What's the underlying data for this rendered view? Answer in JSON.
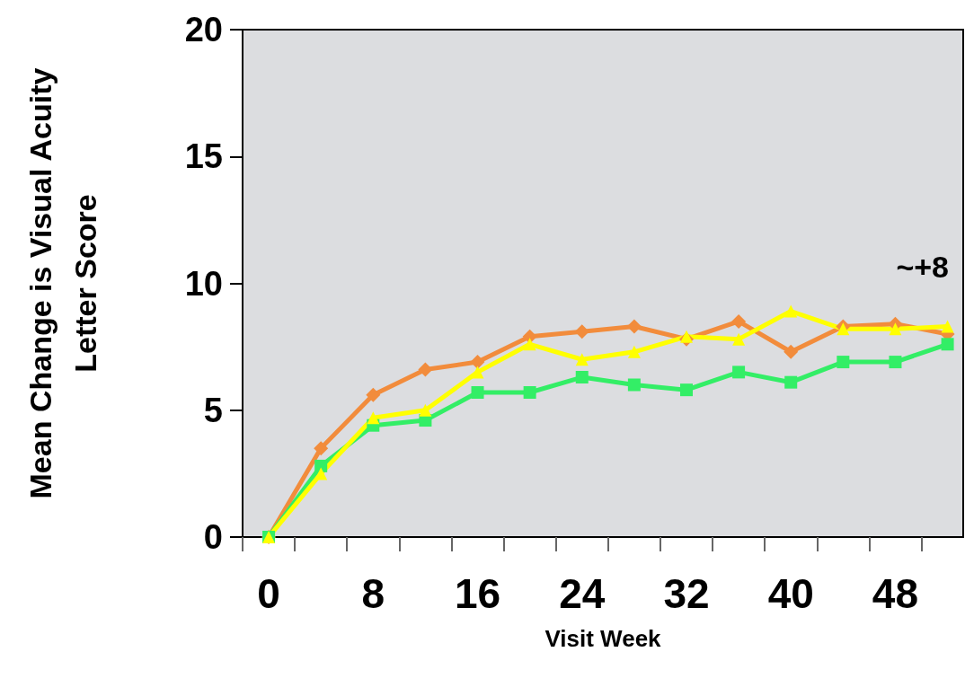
{
  "chart_data": {
    "type": "line",
    "xlabel": "Visit Week",
    "ylabel": "Mean Change is Visual Acuity\nLetter Score",
    "x": [
      0,
      4,
      8,
      12,
      16,
      20,
      24,
      28,
      32,
      36,
      40,
      44,
      48,
      52
    ],
    "series": [
      {
        "color": "#f28c3c",
        "marker": "diamond",
        "values": [
          0,
          3.5,
          5.6,
          6.6,
          6.9,
          7.9,
          8.1,
          8.3,
          7.8,
          8.5,
          7.3,
          8.3,
          8.4,
          8.0
        ]
      },
      {
        "color": "#33ee66",
        "marker": "square",
        "values": [
          0,
          2.8,
          4.4,
          4.6,
          5.7,
          5.7,
          6.3,
          6.0,
          5.8,
          6.5,
          6.1,
          6.9,
          6.9,
          7.6
        ]
      },
      {
        "color": "#ffff00",
        "marker": "triangle",
        "values": [
          0,
          2.5,
          4.7,
          5.0,
          6.5,
          7.6,
          7.0,
          7.3,
          7.9,
          7.8,
          8.9,
          8.2,
          8.2,
          8.3
        ]
      }
    ],
    "xlim": [
      -2,
      53.2
    ],
    "xticks": [
      {
        "value": -2,
        "label": null
      },
      0,
      {
        "value": 2,
        "label": null
      },
      {
        "value": 6,
        "label": null
      },
      8,
      {
        "value": 10,
        "label": null
      },
      {
        "value": 14,
        "label": null
      },
      16,
      {
        "value": 18,
        "label": null
      },
      {
        "value": 22,
        "label": null
      },
      24,
      {
        "value": 26,
        "label": null
      },
      {
        "value": 30,
        "label": null
      },
      32,
      {
        "value": 34,
        "label": null
      },
      {
        "value": 38,
        "label": null
      },
      40,
      {
        "value": 42,
        "label": null
      },
      {
        "value": 46,
        "label": null
      },
      48,
      {
        "value": 50,
        "label": null
      }
    ],
    "ylim": [
      0,
      20
    ],
    "yticks": [
      0,
      5,
      10,
      15,
      20
    ],
    "annotations": [
      "~+8"
    ],
    "grid": false,
    "line_style": "solid"
  }
}
